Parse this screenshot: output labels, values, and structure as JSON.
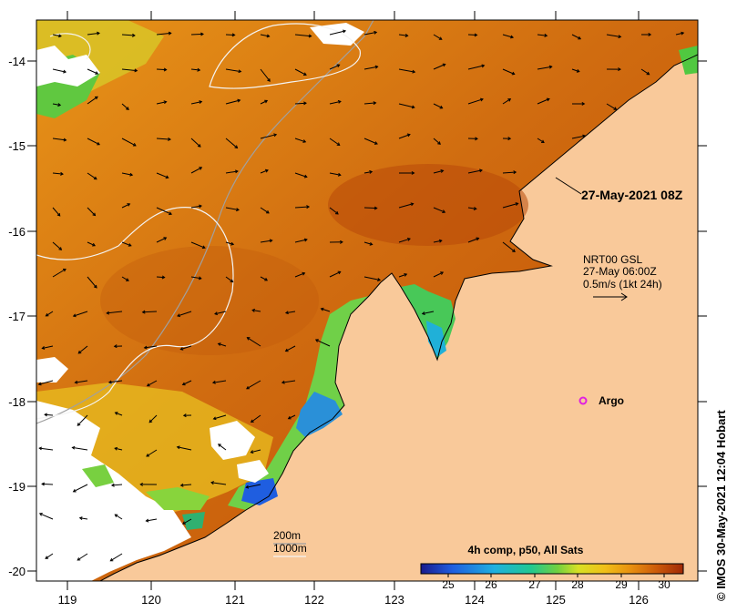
{
  "map": {
    "date_label": "27-May-2021 08Z",
    "current_legend": {
      "line1": "NRT00 GSL",
      "line2": "27-May 06:00Z",
      "line3": "0.5m/s (1kt 24h)"
    },
    "argo_label": "Argo",
    "bathymetry": {
      "contour_200": "200m",
      "contour_1000": "1000m"
    },
    "colorbar": {
      "title": "4h comp, p50, All Sats",
      "ticks": [
        "25",
        "26",
        "27",
        "28",
        "29",
        "30"
      ],
      "colors": [
        "#1a2a8c",
        "#1f5ee0",
        "#1fa0e8",
        "#22c8c0",
        "#2cc870",
        "#78d43c",
        "#c8e028",
        "#f0e028",
        "#f0c018",
        "#e89a10",
        "#dc7a0c",
        "#cc5a0a",
        "#b8400a",
        "#a02806"
      ]
    },
    "lon_ticks": [
      "119",
      "120",
      "121",
      "122",
      "123",
      "124",
      "125",
      "126"
    ],
    "lat_ticks": [
      "-14",
      "-15",
      "-16",
      "-17",
      "-18",
      "-19",
      "-20"
    ],
    "credit": "© IMOS 30-May-2021 12:04 Hobart",
    "colors": {
      "land": "#f9c99a",
      "sst_warm": "#e08c18",
      "sst_hot": "#c8620c",
      "sst_cool": "#f0b818",
      "argo": "#e020e0"
    }
  }
}
